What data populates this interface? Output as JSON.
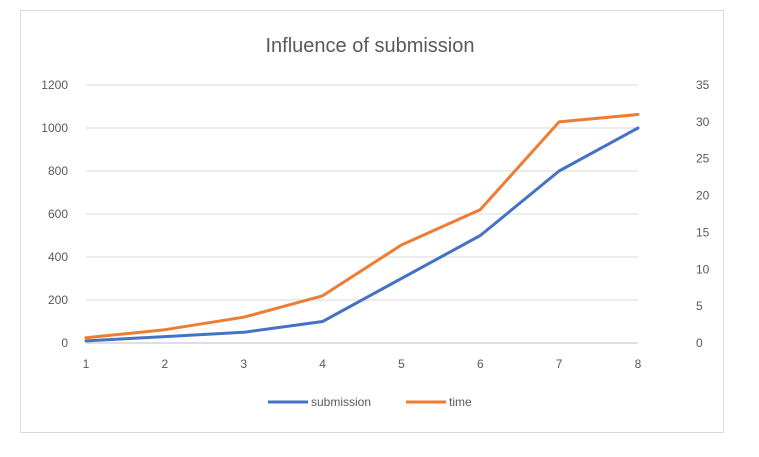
{
  "chart_data": {
    "type": "line",
    "title": "Influence of submission",
    "xlabel": "",
    "ylabel": "",
    "x": [
      1,
      2,
      3,
      4,
      5,
      6,
      7,
      8
    ],
    "x_tick_labels": [
      "1",
      "2",
      "3",
      "4",
      "5",
      "6",
      "7",
      "8"
    ],
    "y_left": {
      "min": 0,
      "max": 1200,
      "step": 200,
      "tick_labels": [
        "0",
        "200",
        "400",
        "600",
        "800",
        "1000",
        "1200"
      ]
    },
    "y_right": {
      "min": 0,
      "max": 35,
      "step": 5,
      "tick_labels": [
        "0",
        "5",
        "10",
        "15",
        "20",
        "25",
        "30",
        "35"
      ]
    },
    "grid": true,
    "legend_position": "bottom",
    "series": [
      {
        "name": "submission",
        "axis": "left",
        "color": "#4472C4",
        "values": [
          10,
          30,
          50,
          100,
          300,
          500,
          800,
          1000
        ]
      },
      {
        "name": "time",
        "axis": "right",
        "color": "#ED7D31",
        "values": [
          0.7,
          1.8,
          3.5,
          6.4,
          13.3,
          18.1,
          30.0,
          31.0
        ]
      }
    ]
  }
}
